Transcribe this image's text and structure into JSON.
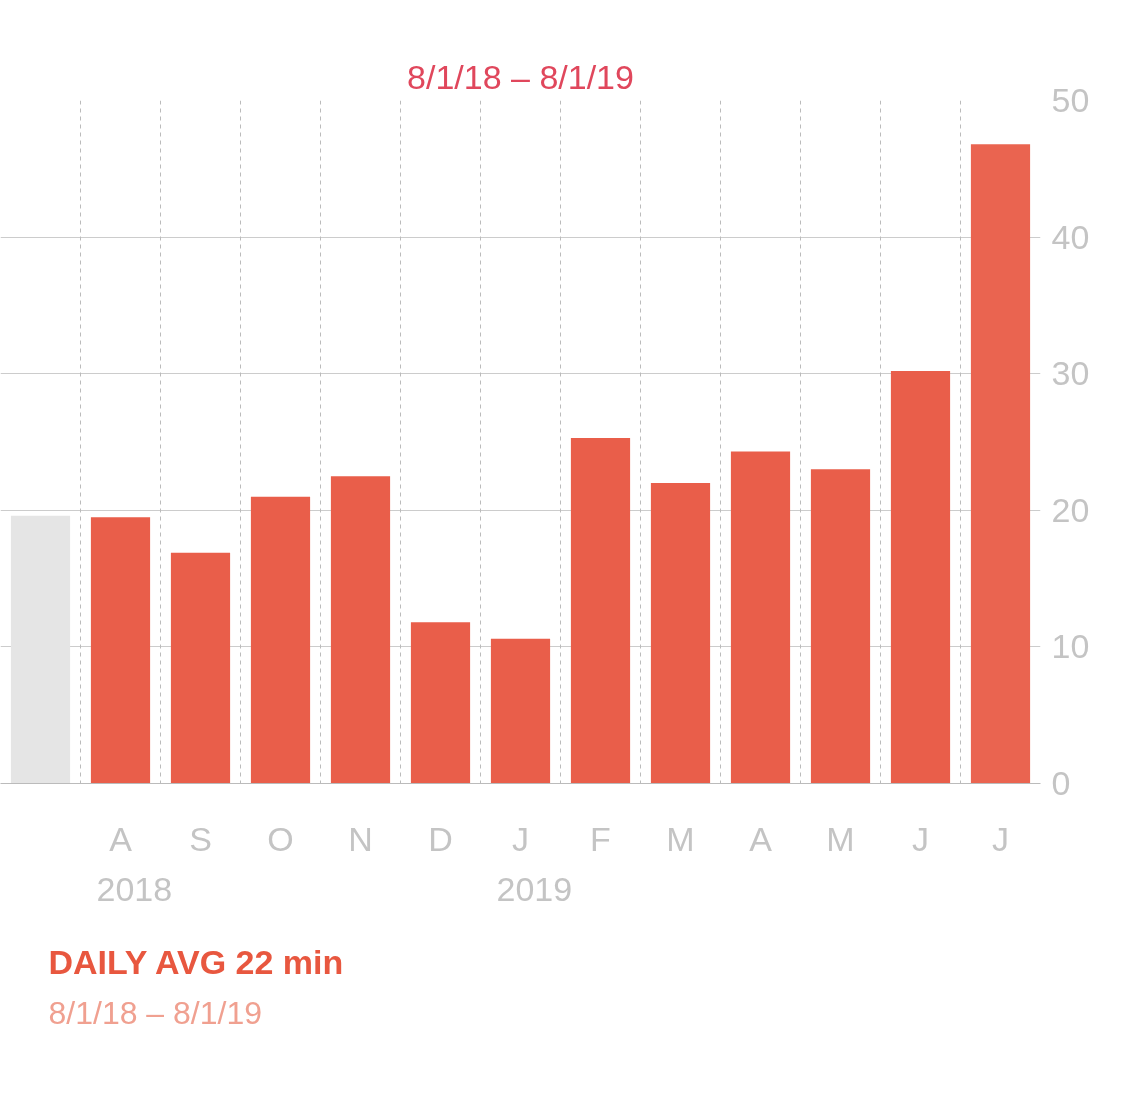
{
  "chart_data": {
    "type": "bar",
    "title": "8/1/18 – 8/1/19",
    "categories": [
      null,
      "A",
      "S",
      "O",
      "N",
      "D",
      "J",
      "F",
      "M",
      "A",
      "M",
      "J",
      "J"
    ],
    "values": [
      19.6,
      19.5,
      16.9,
      21.0,
      22.5,
      11.8,
      10.6,
      25.3,
      22.0,
      24.3,
      23.0,
      30.2,
      46.8
    ],
    "colors": [
      "#e5e5e5",
      "#e95e4a",
      "#e95e4a",
      "#e95e4a",
      "#e95e4a",
      "#e95e4a",
      "#e95e4a",
      "#e95e4a",
      "#e95e4a",
      "#e95e4a",
      "#e95e4a",
      "#e95e4a",
      "#ea6450"
    ],
    "ylim": [
      0,
      50
    ],
    "yticks": [
      0,
      10,
      20,
      30,
      40,
      50
    ],
    "grid": true,
    "annotations": [
      "2018",
      "2019",
      "DAILY AVG 22 min",
      "8/1/18 – 8/1/19"
    ]
  }
}
